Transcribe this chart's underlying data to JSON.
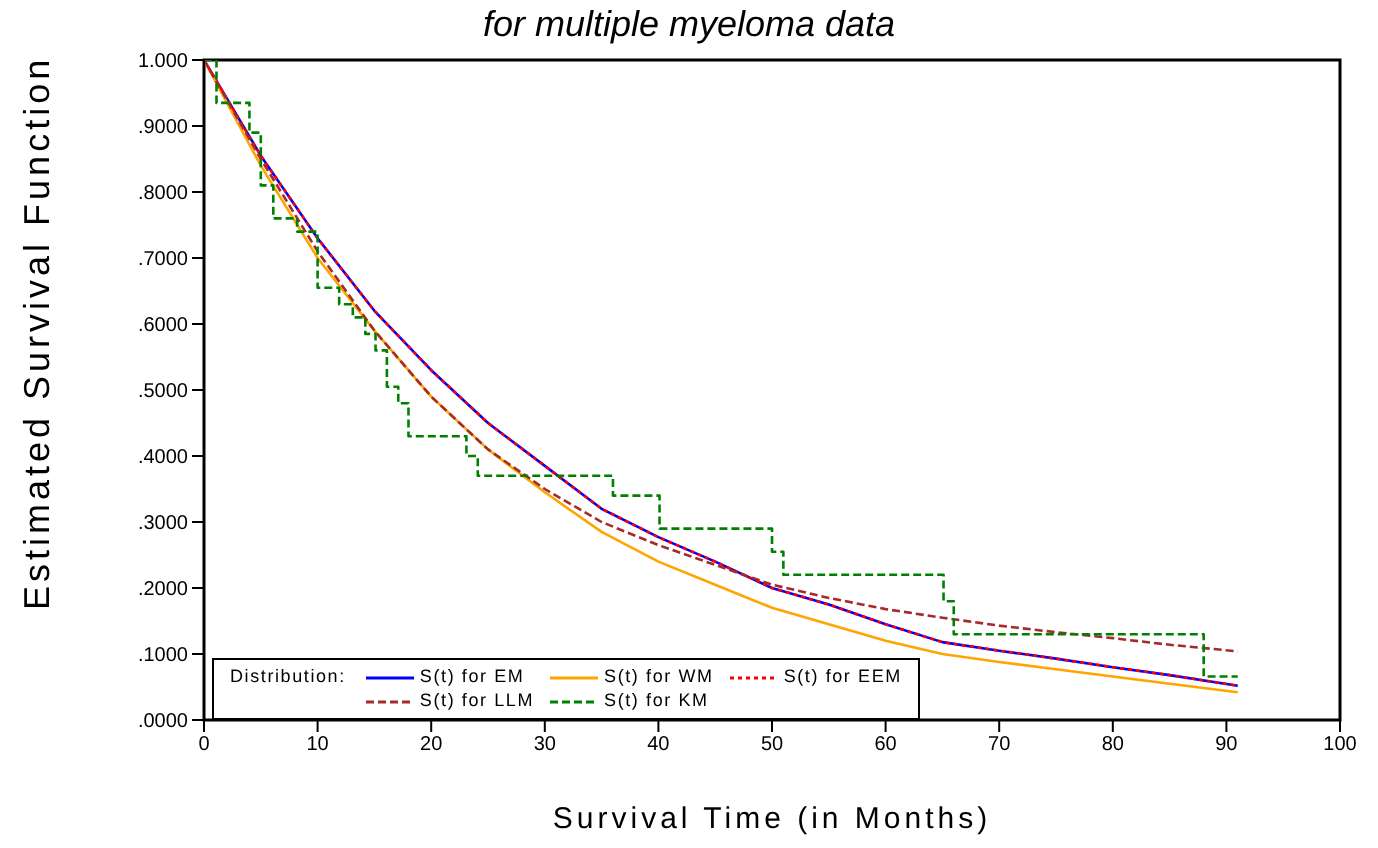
{
  "chart_data": {
    "type": "line",
    "title": "for multiple myeloma data",
    "xlabel": "Survival Time (in Months)",
    "ylabel": "Estimated Survival Function",
    "legend_title": "Distribution:",
    "legend": "bottom left",
    "marker": "none",
    "grid": false,
    "xlim": [
      0,
      100
    ],
    "xticks": [
      0,
      10,
      20,
      30,
      40,
      50,
      60,
      70,
      80,
      90,
      100
    ],
    "ylim": [
      0,
      1
    ],
    "yticks": [
      {
        "value": 0,
        "label": ".0000"
      },
      {
        "value": 0.1,
        "label": ".1000"
      },
      {
        "value": 0.2,
        "label": ".2000"
      },
      {
        "value": 0.3,
        "label": ".3000"
      },
      {
        "value": 0.4,
        "label": ".4000"
      },
      {
        "value": 0.5,
        "label": ".5000"
      },
      {
        "value": 0.6,
        "label": ".6000"
      },
      {
        "value": 0.7,
        "label": ".7000"
      },
      {
        "value": 0.8,
        "label": ".8000"
      },
      {
        "value": 0.9,
        "label": ".9000"
      },
      {
        "value": 1,
        "label": "1.000"
      }
    ],
    "series": [
      {
        "name": "S(t) for EM",
        "color": "#0000ff",
        "line_style": "solid",
        "x": [
          0,
          5,
          10,
          15,
          20,
          25,
          30,
          35,
          40,
          45,
          50,
          55,
          60,
          65,
          70,
          75,
          80,
          85,
          91
        ],
        "values": [
          1,
          0.855,
          0.73,
          0.62,
          0.53,
          0.45,
          0.385,
          0.32,
          0.277,
          0.24,
          0.2,
          0.175,
          0.145,
          0.118,
          0.105,
          0.093,
          0.08,
          0.068,
          0.052
        ]
      },
      {
        "name": "S(t) for WM",
        "color": "#ffa500",
        "line_style": "solid",
        "x": [
          0,
          5,
          10,
          15,
          20,
          25,
          30,
          35,
          40,
          45,
          50,
          55,
          60,
          65,
          70,
          75,
          80,
          85,
          91
        ],
        "values": [
          1,
          0.84,
          0.7,
          0.59,
          0.49,
          0.41,
          0.345,
          0.285,
          0.24,
          0.205,
          0.17,
          0.145,
          0.12,
          0.1,
          0.088,
          0.077,
          0.066,
          0.055,
          0.042
        ]
      },
      {
        "name": "S(t) for EEM",
        "color": "#ff0000",
        "line_style": "dotted",
        "x": [
          0,
          5,
          10,
          15,
          20,
          25,
          30,
          35,
          40,
          45,
          50,
          55,
          60,
          65,
          70,
          75,
          80,
          85,
          91
        ],
        "values": [
          1,
          0.855,
          0.73,
          0.62,
          0.53,
          0.45,
          0.385,
          0.32,
          0.277,
          0.24,
          0.2,
          0.175,
          0.145,
          0.118,
          0.105,
          0.093,
          0.08,
          0.068,
          0.052
        ]
      },
      {
        "name": "S(t) for LLM",
        "color": "#a52a2a",
        "line_style": "dashed",
        "x": [
          0,
          5,
          10,
          15,
          20,
          25,
          30,
          35,
          40,
          45,
          50,
          55,
          60,
          65,
          70,
          75,
          80,
          85,
          91
        ],
        "values": [
          1,
          0.85,
          0.71,
          0.59,
          0.49,
          0.41,
          0.35,
          0.3,
          0.265,
          0.235,
          0.205,
          0.185,
          0.168,
          0.155,
          0.143,
          0.133,
          0.124,
          0.114,
          0.104
        ]
      },
      {
        "name": "S(t) for KM",
        "color": "#008000",
        "line_style": "dashed",
        "type": "step",
        "x": [
          0,
          1.1,
          4,
          5,
          6.1,
          8.2,
          10,
          11.9,
          13.1,
          14.2,
          15.1,
          16.1,
          17.1,
          18,
          23.1,
          24.1,
          36,
          40.1,
          50,
          51,
          65.1,
          66,
          88,
          91
        ],
        "values": [
          1,
          0.935,
          0.89,
          0.81,
          0.76,
          0.74,
          0.655,
          0.63,
          0.61,
          0.585,
          0.56,
          0.505,
          0.48,
          0.43,
          0.4,
          0.37,
          0.34,
          0.29,
          0.255,
          0.22,
          0.18,
          0.13,
          0.066,
          0.066
        ]
      }
    ]
  }
}
